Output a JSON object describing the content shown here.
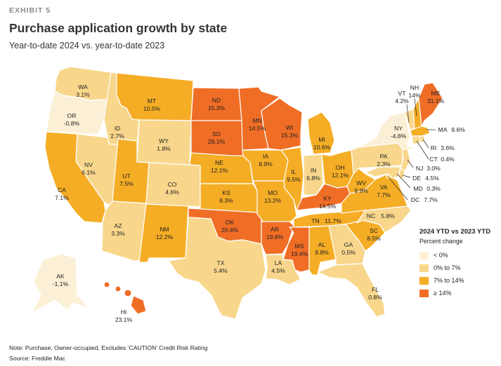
{
  "header": {
    "exhibit": "EXHIBIT 5",
    "title": "Purchase application growth by state",
    "subtitle": "Year-to-date 2024 vs. year-to-date 2023"
  },
  "colors": {
    "lt0": "#fbf0d6",
    "b0to7": "#f8d78c",
    "b7to14": "#f5ad25",
    "ge14": "#f06d26"
  },
  "legend": {
    "title": "2024 YTD vs 2023 YTD",
    "subtitle": "Percent change",
    "items": [
      {
        "label": "< 0%",
        "color": "#fbf0d6"
      },
      {
        "label": "0% to 7%",
        "color": "#f8d78c"
      },
      {
        "label": "7% to 14%",
        "color": "#f5ad25"
      },
      {
        "label": "≥ 14%",
        "color": "#f06d26"
      }
    ]
  },
  "states": {
    "WA": {
      "abbr": "WA",
      "value": "3.1%",
      "bucket": "b0to7"
    },
    "OR": {
      "abbr": "OR",
      "value": "-0.8%",
      "bucket": "lt0"
    },
    "CA": {
      "abbr": "CA",
      "value": "7.1%",
      "bucket": "b7to14"
    },
    "NV": {
      "abbr": "NV",
      "value": "6.1%",
      "bucket": "b0to7"
    },
    "ID": {
      "abbr": "ID",
      "value": "2.7%",
      "bucket": "b0to7"
    },
    "MT": {
      "abbr": "MT",
      "value": "10.5%",
      "bucket": "b7to14"
    },
    "WY": {
      "abbr": "WY",
      "value": "1.8%",
      "bucket": "b0to7"
    },
    "UT": {
      "abbr": "UT",
      "value": "7.5%",
      "bucket": "b7to14"
    },
    "AZ": {
      "abbr": "AZ",
      "value": "3.3%",
      "bucket": "b0to7"
    },
    "CO": {
      "abbr": "CO",
      "value": "4.6%",
      "bucket": "b0to7"
    },
    "NM": {
      "abbr": "NM",
      "value": "12.2%",
      "bucket": "b7to14"
    },
    "ND": {
      "abbr": "ND",
      "value": "15.3%",
      "bucket": "ge14"
    },
    "SD": {
      "abbr": "SD",
      "value": "28.1%",
      "bucket": "ge14"
    },
    "NE": {
      "abbr": "NE",
      "value": "12.1%",
      "bucket": "b7to14"
    },
    "KS": {
      "abbr": "KS",
      "value": "8.3%",
      "bucket": "b7to14"
    },
    "OK": {
      "abbr": "OK",
      "value": "20.4%",
      "bucket": "ge14"
    },
    "TX": {
      "abbr": "TX",
      "value": "5.4%",
      "bucket": "b0to7"
    },
    "MN": {
      "abbr": "MN",
      "value": "14.5%",
      "bucket": "ge14"
    },
    "IA": {
      "abbr": "IA",
      "value": "8.9%",
      "bucket": "b7to14"
    },
    "MO": {
      "abbr": "MO",
      "value": "13.2%",
      "bucket": "b7to14"
    },
    "AR": {
      "abbr": "AR",
      "value": "19.8%",
      "bucket": "ge14"
    },
    "LA": {
      "abbr": "LA",
      "value": "4.5%",
      "bucket": "b0to7"
    },
    "WI": {
      "abbr": "WI",
      "value": "15.3%",
      "bucket": "ge14"
    },
    "IL": {
      "abbr": "IL",
      "value": "9.5%",
      "bucket": "b7to14"
    },
    "MI": {
      "abbr": "MI",
      "value": "10.6%",
      "bucket": "b7to14"
    },
    "IN": {
      "abbr": "IN",
      "value": "6.8%",
      "bucket": "b0to7"
    },
    "OH": {
      "abbr": "OH",
      "value": "12.1%",
      "bucket": "b7to14"
    },
    "KY": {
      "abbr": "KY",
      "value": "14.5%",
      "bucket": "ge14"
    },
    "TN": {
      "abbr": "TN",
      "value": "11.7%",
      "bucket": "b7to14"
    },
    "MS": {
      "abbr": "MS",
      "value": "19.4%",
      "bucket": "ge14"
    },
    "AL": {
      "abbr": "AL",
      "value": "9.8%",
      "bucket": "b7to14"
    },
    "GA": {
      "abbr": "GA",
      "value": "0.5%",
      "bucket": "b0to7"
    },
    "FL": {
      "abbr": "FL",
      "value": "0.8%",
      "bucket": "b0to7"
    },
    "SC": {
      "abbr": "SC",
      "value": "8.5%",
      "bucket": "b7to14"
    },
    "NC": {
      "abbr": "NC",
      "value": "5.8%",
      "bucket": "b0to7"
    },
    "VA": {
      "abbr": "VA",
      "value": "7.7%",
      "bucket": "b7to14"
    },
    "WV": {
      "abbr": "WV",
      "value": "9.9%",
      "bucket": "b7to14"
    },
    "PA": {
      "abbr": "PA",
      "value": "2.3%",
      "bucket": "b0to7"
    },
    "NY": {
      "abbr": "NY",
      "value": "-4.8%",
      "bucket": "lt0"
    },
    "VT": {
      "abbr": "VT",
      "value": "4.2%",
      "bucket": "b0to7"
    },
    "NH": {
      "abbr": "NH",
      "value": "14%",
      "bucket": "b7to14"
    },
    "ME": {
      "abbr": "ME",
      "value": "31.1%",
      "bucket": "ge14"
    },
    "MA": {
      "abbr": "MA",
      "value": "9.6%",
      "bucket": "b7to14"
    },
    "RI": {
      "abbr": "RI",
      "value": "3.6%",
      "bucket": "b0to7"
    },
    "CT": {
      "abbr": "CT",
      "value": "0.4%",
      "bucket": "b0to7"
    },
    "NJ": {
      "abbr": "NJ",
      "value": "3.0%",
      "bucket": "b0to7"
    },
    "DE": {
      "abbr": "DE",
      "value": "4.5%",
      "bucket": "b0to7"
    },
    "MD": {
      "abbr": "MD",
      "value": "0.3%",
      "bucket": "b0to7"
    },
    "DC": {
      "abbr": "DC",
      "value": "7.7%",
      "bucket": "b7to14"
    },
    "AK": {
      "abbr": "AK",
      "value": "-1.1%",
      "bucket": "lt0"
    },
    "HI": {
      "abbr": "HI",
      "value": "23.1%",
      "bucket": "ge14"
    }
  },
  "footer": {
    "note": "Note: Purchase, Owner-occupied, Excludes ‘CAUTION’ Credit Risk Rating",
    "source": "Source: Freddie Mac"
  }
}
